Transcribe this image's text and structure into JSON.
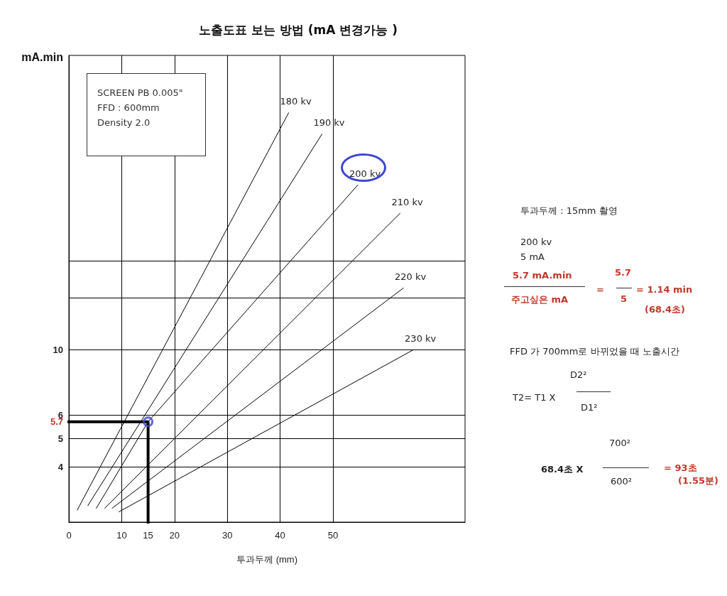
{
  "chart_data": {
    "type": "line",
    "title": "노출도표 보는 방법 (mA 변경가능 )",
    "xlabel": "투과두께 (mm)",
    "ylabel": "mA.min",
    "log": "y",
    "grid": true,
    "legend": false,
    "marker": "none",
    "xlim": [
      0,
      75
    ],
    "xticks": [
      0,
      10,
      15,
      20,
      30,
      40,
      50
    ],
    "ylim": [
      2.6,
      100
    ],
    "yticks": [
      4,
      5,
      5.7,
      6,
      10,
      {
        "value": 15,
        "label": null
      },
      {
        "value": 20,
        "label": null
      }
    ],
    "series": [
      {
        "name": "180 kv",
        "color": "#000000",
        "x": [
          1.6,
          41.6
        ],
        "values": [
          2.86,
          63.8
        ]
      },
      {
        "name": "190 kv",
        "color": "#000000",
        "x": [
          3.6,
          47.9
        ],
        "values": [
          2.96,
          54
        ]
      },
      {
        "name": "200 kv",
        "color": "#000000",
        "x": [
          5.2,
          15,
          54.7
        ],
        "values": [
          2.9,
          5.7,
          36.3
        ]
      },
      {
        "name": "210 kv",
        "color": "#000000",
        "x": [
          6.8,
          62.7
        ],
        "values": [
          2.9,
          29.1
        ]
      },
      {
        "name": "220 kv",
        "color": "#000000",
        "x": [
          8.2,
          63.3
        ],
        "values": [
          2.9,
          16.2
        ]
      },
      {
        "name": "230 kv",
        "color": "#000000",
        "x": [
          9.5,
          65.2
        ],
        "values": [
          2.82,
          10
        ]
      },
      {
        "type": "line",
        "color": "#000000",
        "x": [
          0,
          15,
          15
        ],
        "values": [
          5.7,
          5.7,
          2.6
        ]
      },
      {
        "type": "scatter",
        "color": "#3f48cc",
        "marker": "circle",
        "x": [
          15
        ],
        "values": [
          5.7
        ]
      }
    ],
    "annotations": [
      "SCREEN PB 0.005\"",
      "FFD : 600mm",
      "Density 2.0",
      "투과두께 : 15mm 촬영",
      "200 kv",
      "5 mA",
      "5.7 mA.min",
      "주고싶은 mA",
      "=",
      "5.7",
      "5",
      "= 1.14 min",
      "(68.4초)",
      "FFD 가  700mm로 바뀌었을 때 노출시간",
      "T2= T1 X",
      "D2²",
      "D1²",
      "68.4초 X",
      "700²",
      "600²",
      "= 93초",
      "(1.55분)"
    ]
  }
}
